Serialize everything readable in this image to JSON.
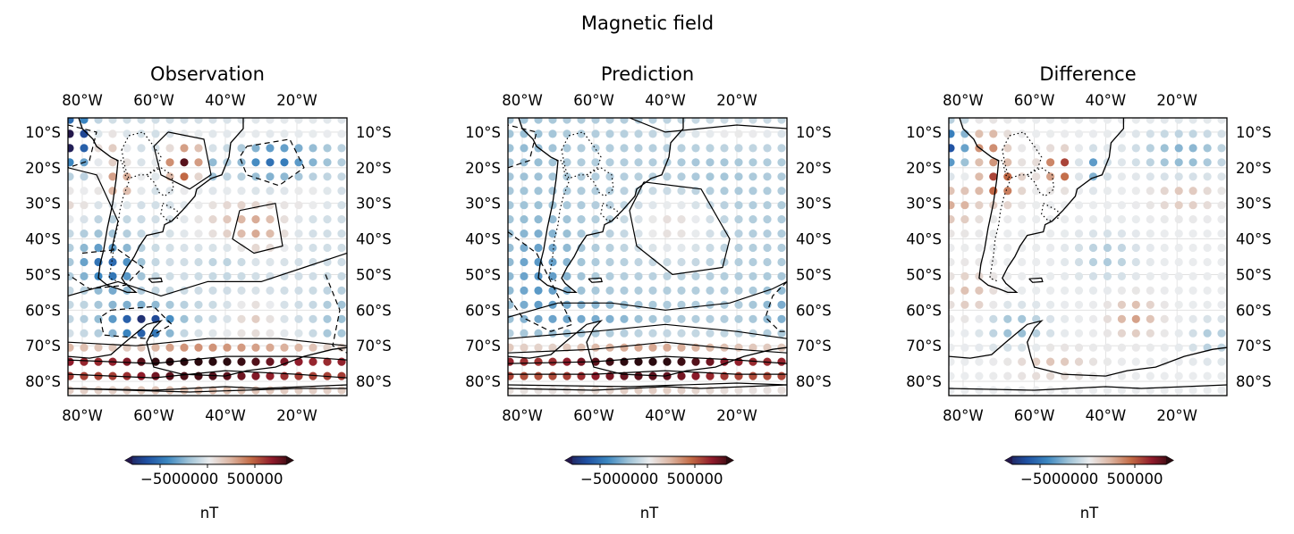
{
  "chart_data": {
    "type": "scatter",
    "title": "Magnetic field",
    "x_tick_labels": [
      "80°W",
      "60°W",
      "40°W",
      "20°W"
    ],
    "x_ticks": [
      -80,
      -60,
      -40,
      -20
    ],
    "y_tick_labels": [
      "10°S",
      "20°S",
      "30°S",
      "40°S",
      "50°S",
      "60°S",
      "70°S",
      "80°S"
    ],
    "y_ticks": [
      -10,
      -20,
      -30,
      -40,
      -50,
      -60,
      -70,
      -80
    ],
    "lon_range": [
      -84,
      -6
    ],
    "lat_range": [
      -84,
      -6
    ],
    "grid": true,
    "colormap": [
      "#23174a",
      "#1f4fa0",
      "#3b86c0",
      "#9cc1d6",
      "#eaecee",
      "#dcb5a2",
      "#c26a45",
      "#8e1a2a",
      "#2a0a0f"
    ],
    "colorbar_ticks": [
      "−5000000",
      "500000"
    ],
    "colorbar_unit": "nT",
    "panels": [
      {
        "title": "Observation",
        "note": "observed field at grid points, with contours"
      },
      {
        "title": "Prediction",
        "note": "predicted field at grid points, with smoother contours"
      },
      {
        "title": "Difference",
        "note": "observation minus prediction"
      }
    ]
  }
}
